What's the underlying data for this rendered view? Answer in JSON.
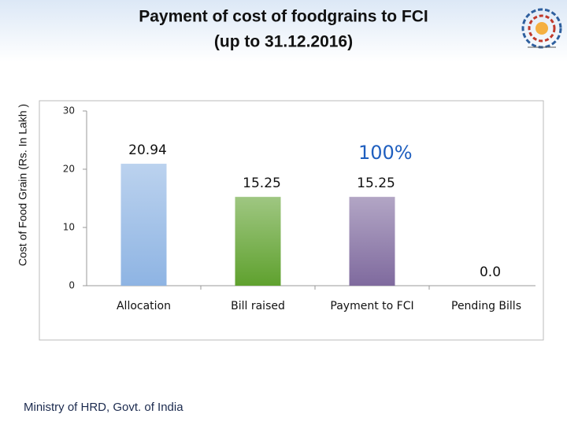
{
  "chart_data": {
    "type": "bar",
    "title": "Payment of cost of foodgrains to FCI",
    "subtitle": "(up to 31.12.2016)",
    "y_label": "Cost of Food Grain (Rs. In Lakh )",
    "categories": [
      "Allocation",
      "Bill raised",
      "Payment to FCI",
      "Pending Bills"
    ],
    "values": [
      20.94,
      15.25,
      15.25,
      0
    ],
    "value_labels": [
      "20.94",
      "15.25",
      "15.25",
      "0.0"
    ],
    "colors": [
      "#8eb4e3",
      "#5fa12e",
      "#7f6a9e",
      "#9bbb59"
    ],
    "annotation": "100%",
    "ylim": [
      0,
      30
    ],
    "yticks": [
      0,
      10,
      20,
      30
    ],
    "grid": false
  },
  "footer": "Ministry of HRD, Govt. of India"
}
